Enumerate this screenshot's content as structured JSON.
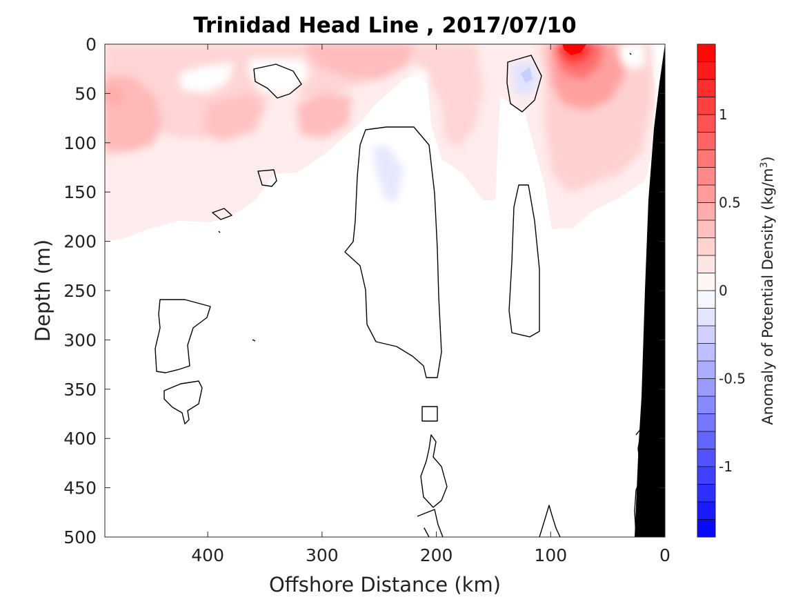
{
  "chart_data": {
    "type": "heatmap",
    "title": "Trinidad Head Line , 2017/07/10",
    "xlabel": "Offshore Distance (km)",
    "ylabel": "Depth (m)",
    "xlim": [
      490,
      0
    ],
    "ylim": [
      0,
      500
    ],
    "x_reversed": true,
    "y_reversed": true,
    "xticks": [
      400,
      300,
      200,
      100,
      0
    ],
    "yticks": [
      0,
      50,
      100,
      150,
      200,
      250,
      300,
      350,
      400,
      450,
      500
    ],
    "colorbar": {
      "label": "Anomaly of Potential Density (kg/m³)",
      "label_text": "Anomaly of Potential Density (kg/m",
      "label_sup": "3",
      "label_close": ")",
      "range": [
        -1.4,
        1.4
      ],
      "levels": 28,
      "ticks": [
        -1,
        -0.5,
        0,
        0.5,
        1
      ],
      "tick_labels": [
        "-1",
        "-0.5",
        "0",
        "0.5",
        "1"
      ],
      "colormap": "blue-white-red",
      "neg_color": "#0000ff",
      "zero_color": "#ffffff",
      "pos_color": "#ff0000"
    },
    "features": [
      {
        "name": "max-positive-anomaly",
        "x_km": 82,
        "depth_m": 5,
        "value": 1.4
      },
      {
        "name": "negative-anomaly-near-120km",
        "x_km": 122,
        "depth_m": 30,
        "value": -0.2
      },
      {
        "name": "negative-anomaly-near-245km",
        "x_km": 245,
        "depth_m": 130,
        "value": -0.1
      },
      {
        "name": "positive-anomaly-near-480km",
        "x_km": 480,
        "depth_m": 50,
        "value": 0.4
      }
    ],
    "bathymetry_color": "#000000",
    "grid": false,
    "legend": "none"
  }
}
